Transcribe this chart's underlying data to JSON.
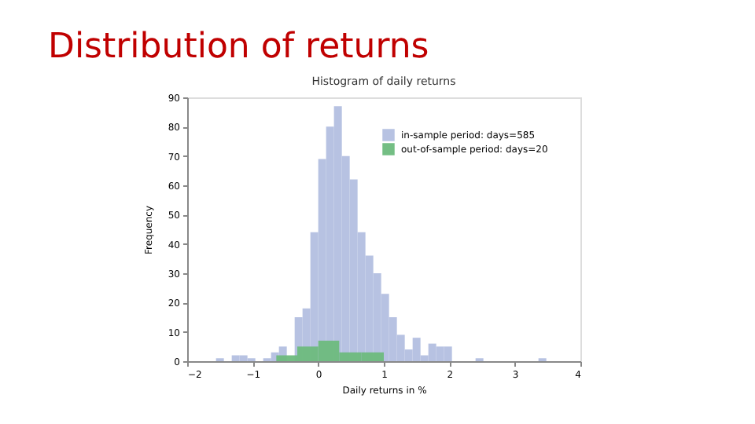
{
  "chart_data": {
    "type": "histogram",
    "title": "Distribution of returns",
    "subtitle": "Histogram of daily returns",
    "xlabel": "Daily returns in %",
    "ylabel": "Frequency",
    "bins": [
      -1.56,
      -1.44,
      -1.32,
      -1.2,
      -1.08,
      -0.96,
      -0.84,
      -0.72,
      -0.6,
      -0.48,
      -0.36,
      -0.24,
      -0.12,
      0,
      0.12,
      0.24,
      0.36,
      0.48,
      0.6,
      0.72,
      0.84,
      0.96,
      1.08,
      1.2,
      1.32,
      1.44,
      1.56,
      1.68,
      1.8,
      1.92,
      2.04,
      2.16,
      2.28,
      2.4,
      2.52,
      2.64,
      2.76,
      2.88,
      3.0,
      3.12,
      3.24,
      3.36,
      3.48
    ],
    "series": [
      {
        "name": "in-sample period: days=585",
        "color": "#b3bfe0",
        "values": [
          1,
          0,
          2,
          2,
          1,
          0,
          1,
          3,
          5,
          null,
          15,
          18,
          44,
          69,
          80,
          87,
          70,
          62,
          44,
          36,
          30,
          23,
          15,
          9,
          4,
          8,
          2,
          6,
          5,
          5,
          0,
          0,
          0,
          1,
          0,
          0,
          0,
          0,
          0,
          0,
          0,
          1
        ]
      },
      {
        "name": "out-of-sample period: days=20",
        "color": "#6dbb7d",
        "bins": [
          -0.64,
          -0.32,
          0,
          0.32,
          0.66,
          1.0
        ],
        "values": [
          2,
          5,
          7,
          3,
          3
        ]
      }
    ],
    "xlim": [
      -2,
      4
    ],
    "xticks": [
      -2,
      -1,
      0,
      1,
      2,
      3,
      4
    ],
    "ylim": [
      0,
      90
    ],
    "yticks": [
      0,
      10,
      20,
      30,
      40,
      50,
      60,
      70,
      80,
      90
    ],
    "grid": false,
    "legend": "top right"
  }
}
